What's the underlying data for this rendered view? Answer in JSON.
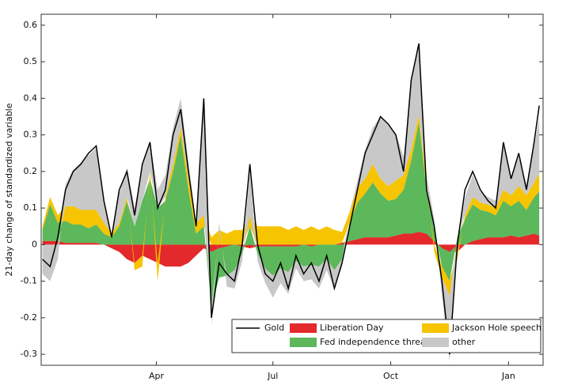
{
  "chart_data": {
    "type": "stacked_area_line",
    "y_label": "21-day change of standardized variable",
    "x": [
      2,
      8,
      14,
      20,
      26,
      32,
      38,
      44,
      50,
      56,
      62,
      68,
      74,
      80,
      86,
      92,
      98,
      104,
      110,
      116,
      122,
      128,
      134,
      140,
      146,
      152,
      158,
      164,
      170,
      176,
      182,
      188,
      194,
      200,
      206,
      212,
      218,
      224,
      230,
      236,
      242,
      248,
      254,
      260,
      266,
      272,
      278,
      284,
      290,
      296,
      302,
      308,
      314,
      320,
      326,
      332,
      338,
      344,
      350,
      356,
      362,
      368,
      374,
      380,
      386,
      390
    ],
    "xlim": [
      1,
      393
    ],
    "xticks": [
      {
        "value": 91,
        "label": "Apr"
      },
      {
        "value": 182,
        "label": "Jul"
      },
      {
        "value": 274,
        "label": "Oct"
      },
      {
        "value": 366,
        "label": "Jan"
      }
    ],
    "ylim": [
      -0.33,
      0.63
    ],
    "yticks": [
      -0.3,
      -0.2,
      -0.1,
      0,
      0.1,
      0.2,
      0.3,
      0.4,
      0.5,
      0.6
    ],
    "series": [
      {
        "name": "Gold",
        "kind": "line",
        "color": "#000000",
        "values": [
          -0.04,
          -0.06,
          0.02,
          0.15,
          0.2,
          0.22,
          0.25,
          0.27,
          0.12,
          0.02,
          0.15,
          0.2,
          0.08,
          0.22,
          0.28,
          0.1,
          0.15,
          0.3,
          0.37,
          0.2,
          0.05,
          0.4,
          -0.2,
          -0.05,
          -0.08,
          -0.1,
          0.0,
          0.22,
          0.0,
          -0.08,
          -0.1,
          -0.05,
          -0.12,
          -0.03,
          -0.08,
          -0.05,
          -0.1,
          -0.03,
          -0.12,
          -0.05,
          0.05,
          0.15,
          0.25,
          0.3,
          0.35,
          0.33,
          0.3,
          0.2,
          0.45,
          0.55,
          0.15,
          0.05,
          -0.1,
          -0.3,
          0.0,
          0.15,
          0.2,
          0.15,
          0.12,
          0.1,
          0.28,
          0.18,
          0.25,
          0.15,
          0.28,
          0.38
        ]
      },
      {
        "name": "Liberation Day",
        "kind": "area",
        "color": "#e3292b",
        "values": [
          0.01,
          0.01,
          0.01,
          0.005,
          0.005,
          0.005,
          0.005,
          0.005,
          0.0,
          -0.01,
          -0.02,
          -0.04,
          -0.05,
          -0.03,
          -0.04,
          -0.05,
          -0.06,
          -0.06,
          -0.06,
          -0.05,
          -0.03,
          -0.01,
          -0.02,
          -0.01,
          -0.005,
          0.0,
          -0.005,
          -0.01,
          -0.005,
          -0.005,
          -0.005,
          -0.005,
          -0.005,
          -0.005,
          0.0,
          -0.005,
          0.0,
          0.0,
          0.0,
          0.005,
          0.01,
          0.015,
          0.02,
          0.02,
          0.02,
          0.02,
          0.025,
          0.03,
          0.03,
          0.035,
          0.03,
          0.01,
          -0.01,
          -0.02,
          -0.02,
          0.0,
          0.01,
          0.015,
          0.02,
          0.02,
          0.02,
          0.025,
          0.02,
          0.025,
          0.03,
          0.025
        ]
      },
      {
        "name": "Fed independence threat",
        "kind": "area",
        "color": "#5cb85a",
        "values": [
          0.03,
          0.1,
          0.05,
          0.06,
          0.05,
          0.05,
          0.04,
          0.05,
          0.03,
          0.02,
          0.05,
          0.12,
          0.05,
          0.12,
          0.18,
          0.1,
          0.12,
          0.2,
          0.3,
          0.15,
          0.03,
          0.05,
          -0.15,
          -0.08,
          -0.08,
          -0.07,
          -0.02,
          0.05,
          -0.02,
          -0.06,
          -0.08,
          -0.06,
          -0.07,
          -0.04,
          -0.06,
          -0.05,
          -0.06,
          -0.04,
          -0.07,
          -0.04,
          0.05,
          0.1,
          0.12,
          0.15,
          0.12,
          0.1,
          0.1,
          0.12,
          0.2,
          0.3,
          0.12,
          0.03,
          -0.05,
          -0.08,
          0.02,
          0.07,
          0.1,
          0.08,
          0.07,
          0.06,
          0.1,
          0.08,
          0.1,
          0.07,
          0.1,
          0.12
        ]
      },
      {
        "name": "Jackson Hole speech",
        "kind": "area",
        "color": "#f6c400",
        "values": [
          0.01,
          0.02,
          0.02,
          0.04,
          0.05,
          0.04,
          0.05,
          0.04,
          0.03,
          0.01,
          0.01,
          0.01,
          -0.02,
          -0.03,
          0.02,
          -0.05,
          0.01,
          0.02,
          0.02,
          0.03,
          0.03,
          0.03,
          0.02,
          0.04,
          0.03,
          0.04,
          0.04,
          0.03,
          0.05,
          0.05,
          0.05,
          0.05,
          0.04,
          0.05,
          0.04,
          0.05,
          0.04,
          0.05,
          0.04,
          0.03,
          0.03,
          0.04,
          0.04,
          0.05,
          0.04,
          0.04,
          0.05,
          0.04,
          0.03,
          0.02,
          0.02,
          -0.02,
          -0.03,
          -0.04,
          -0.02,
          0.01,
          0.02,
          0.02,
          0.02,
          0.02,
          0.03,
          0.03,
          0.04,
          0.04,
          0.04,
          0.05
        ]
      },
      {
        "name": "other",
        "kind": "area",
        "color": "#c8c8c8",
        "values": [
          -0.08,
          -0.1,
          -0.04,
          0.06,
          0.1,
          0.13,
          0.15,
          0.17,
          0.06,
          0.0,
          0.08,
          0.08,
          0.05,
          0.1,
          0.08,
          0.05,
          0.06,
          0.1,
          0.08,
          0.05,
          0.0,
          0.3,
          -0.05,
          0.02,
          -0.03,
          -0.05,
          -0.02,
          0.12,
          -0.02,
          -0.04,
          -0.06,
          -0.04,
          -0.06,
          -0.02,
          -0.04,
          -0.04,
          -0.06,
          -0.03,
          -0.05,
          -0.02,
          0.0,
          0.02,
          0.08,
          0.1,
          0.17,
          0.17,
          0.13,
          0.05,
          0.18,
          0.2,
          0.02,
          0.03,
          -0.05,
          -0.18,
          0.0,
          0.05,
          0.06,
          0.03,
          0.02,
          0.02,
          0.12,
          0.05,
          0.08,
          0.03,
          0.1,
          0.15
        ]
      }
    ]
  }
}
